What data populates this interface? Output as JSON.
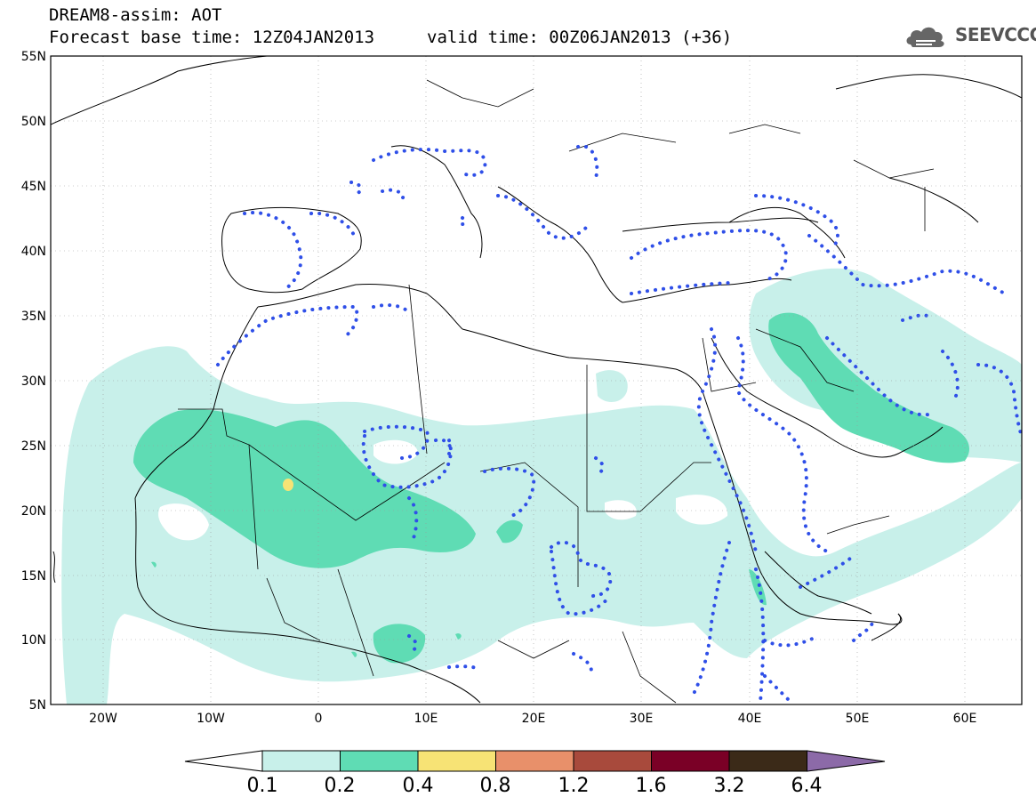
{
  "title": {
    "line1": "DREAM8-assim: AOT",
    "line2": "Forecast base time: 12Z04JAN2013",
    "valid": "valid time: 00Z06JAN2013 (+36)"
  },
  "logo": {
    "text": "SEEVCCC",
    "icon": "cloud-icon"
  },
  "axes": {
    "lat_labels": [
      "55N",
      "50N",
      "45N",
      "40N",
      "35N",
      "30N",
      "25N",
      "20N",
      "15N",
      "10N",
      "5N"
    ],
    "lon_labels": [
      "20W",
      "10W",
      "0",
      "10E",
      "20E",
      "30E",
      "40E",
      "50E",
      "60E"
    ]
  },
  "colorbar": {
    "labels": [
      "0.1",
      "0.2",
      "0.4",
      "0.8",
      "1.2",
      "1.6",
      "3.2",
      "6.4"
    ],
    "colors": [
      "#ffffff",
      "#c8f0ea",
      "#5fdcb4",
      "#f7e375",
      "#e8906a",
      "#a84a3c",
      "#7a0026",
      "#3b2a18",
      "#8c6aa8"
    ]
  },
  "field_colors": {
    "low": "#c8f0ea",
    "mid": "#5fdcb4",
    "high": "#f7e375",
    "dust_contour": "#2f4fe8"
  }
}
